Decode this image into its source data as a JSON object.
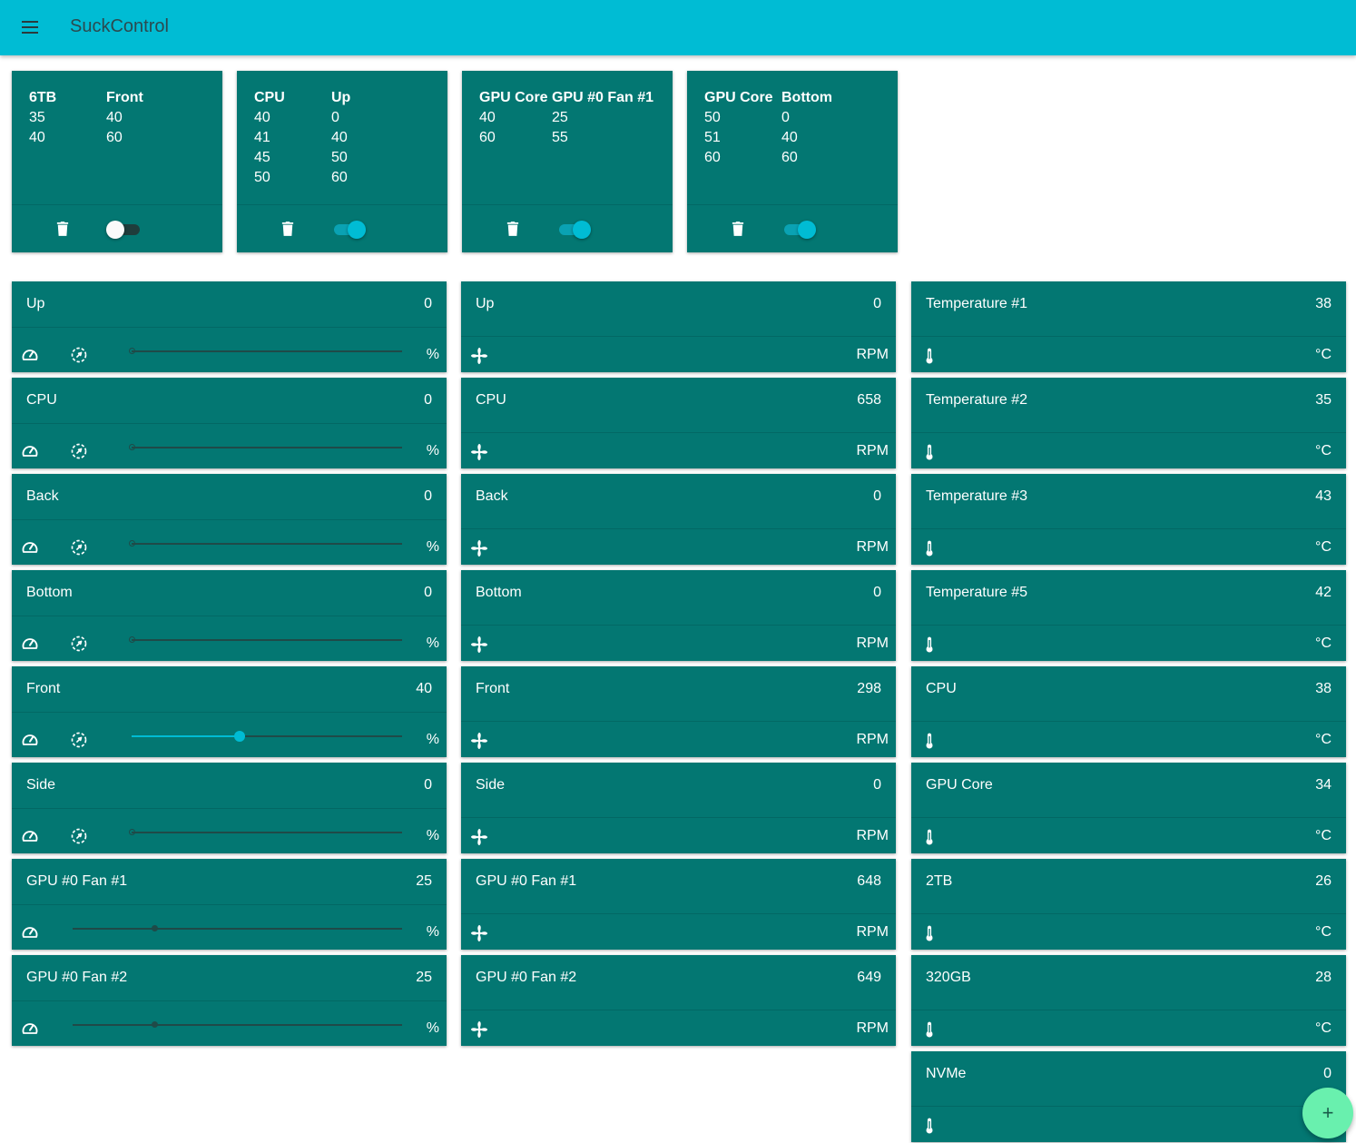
{
  "app": {
    "title": "SuckControl"
  },
  "colors": {
    "appbar": "#00bcd4",
    "card": "#037772",
    "accent": "#00bcd4",
    "fab": "#69f0ae"
  },
  "effects": [
    {
      "head": [
        "6TB",
        "Front"
      ],
      "rows": [
        [
          "35",
          "40"
        ],
        [
          "40",
          "60"
        ]
      ],
      "enabled": false
    },
    {
      "head": [
        "CPU",
        "Up"
      ],
      "rows": [
        [
          "40",
          "0"
        ],
        [
          "41",
          "40"
        ],
        [
          "45",
          "50"
        ],
        [
          "50",
          "60"
        ]
      ],
      "enabled": true
    },
    {
      "head": [
        "GPU Core",
        "GPU #0 Fan #1"
      ],
      "rows": [
        [
          "40",
          "25"
        ],
        [
          "60",
          "55"
        ]
      ],
      "enabled": true
    },
    {
      "head": [
        "GPU Core",
        "Bottom"
      ],
      "rows": [
        [
          "50",
          "0"
        ],
        [
          "51",
          "40"
        ],
        [
          "60",
          "60"
        ]
      ],
      "enabled": true
    }
  ],
  "controls": [
    {
      "name": "Up",
      "value": "0",
      "unit": "%",
      "level": 0,
      "auto_icon": true
    },
    {
      "name": "CPU",
      "value": "0",
      "unit": "%",
      "level": 0,
      "auto_icon": true
    },
    {
      "name": "Back",
      "value": "0",
      "unit": "%",
      "level": 0,
      "auto_icon": true
    },
    {
      "name": "Bottom",
      "value": "0",
      "unit": "%",
      "level": 0,
      "auto_icon": true
    },
    {
      "name": "Front",
      "value": "40",
      "unit": "%",
      "level": 40,
      "auto_icon": true
    },
    {
      "name": "Side",
      "value": "0",
      "unit": "%",
      "level": 0,
      "auto_icon": true
    },
    {
      "name": "GPU #0 Fan #1",
      "value": "25",
      "unit": "%",
      "level": 25,
      "auto_icon": false
    },
    {
      "name": "GPU #0 Fan #2",
      "value": "25",
      "unit": "%",
      "level": 25,
      "auto_icon": false
    }
  ],
  "fans": [
    {
      "name": "Up",
      "value": "0",
      "unit": "RPM"
    },
    {
      "name": "CPU",
      "value": "658",
      "unit": "RPM"
    },
    {
      "name": "Back",
      "value": "0",
      "unit": "RPM"
    },
    {
      "name": "Bottom",
      "value": "0",
      "unit": "RPM"
    },
    {
      "name": "Front",
      "value": "298",
      "unit": "RPM"
    },
    {
      "name": "Side",
      "value": "0",
      "unit": "RPM"
    },
    {
      "name": "GPU #0 Fan #1",
      "value": "648",
      "unit": "RPM"
    },
    {
      "name": "GPU #0 Fan #2",
      "value": "649",
      "unit": "RPM"
    }
  ],
  "temperatures": [
    {
      "name": "Temperature #1",
      "value": "38",
      "unit": "°C"
    },
    {
      "name": "Temperature #2",
      "value": "35",
      "unit": "°C"
    },
    {
      "name": "Temperature #3",
      "value": "43",
      "unit": "°C"
    },
    {
      "name": "Temperature #5",
      "value": "42",
      "unit": "°C"
    },
    {
      "name": "CPU",
      "value": "38",
      "unit": "°C"
    },
    {
      "name": "GPU Core",
      "value": "34",
      "unit": "°C"
    },
    {
      "name": "2TB",
      "value": "26",
      "unit": "°C"
    },
    {
      "name": "320GB",
      "value": "28",
      "unit": "°C"
    },
    {
      "name": "NVMe",
      "value": "0",
      "unit": ""
    }
  ],
  "fab": {
    "label": "+"
  }
}
